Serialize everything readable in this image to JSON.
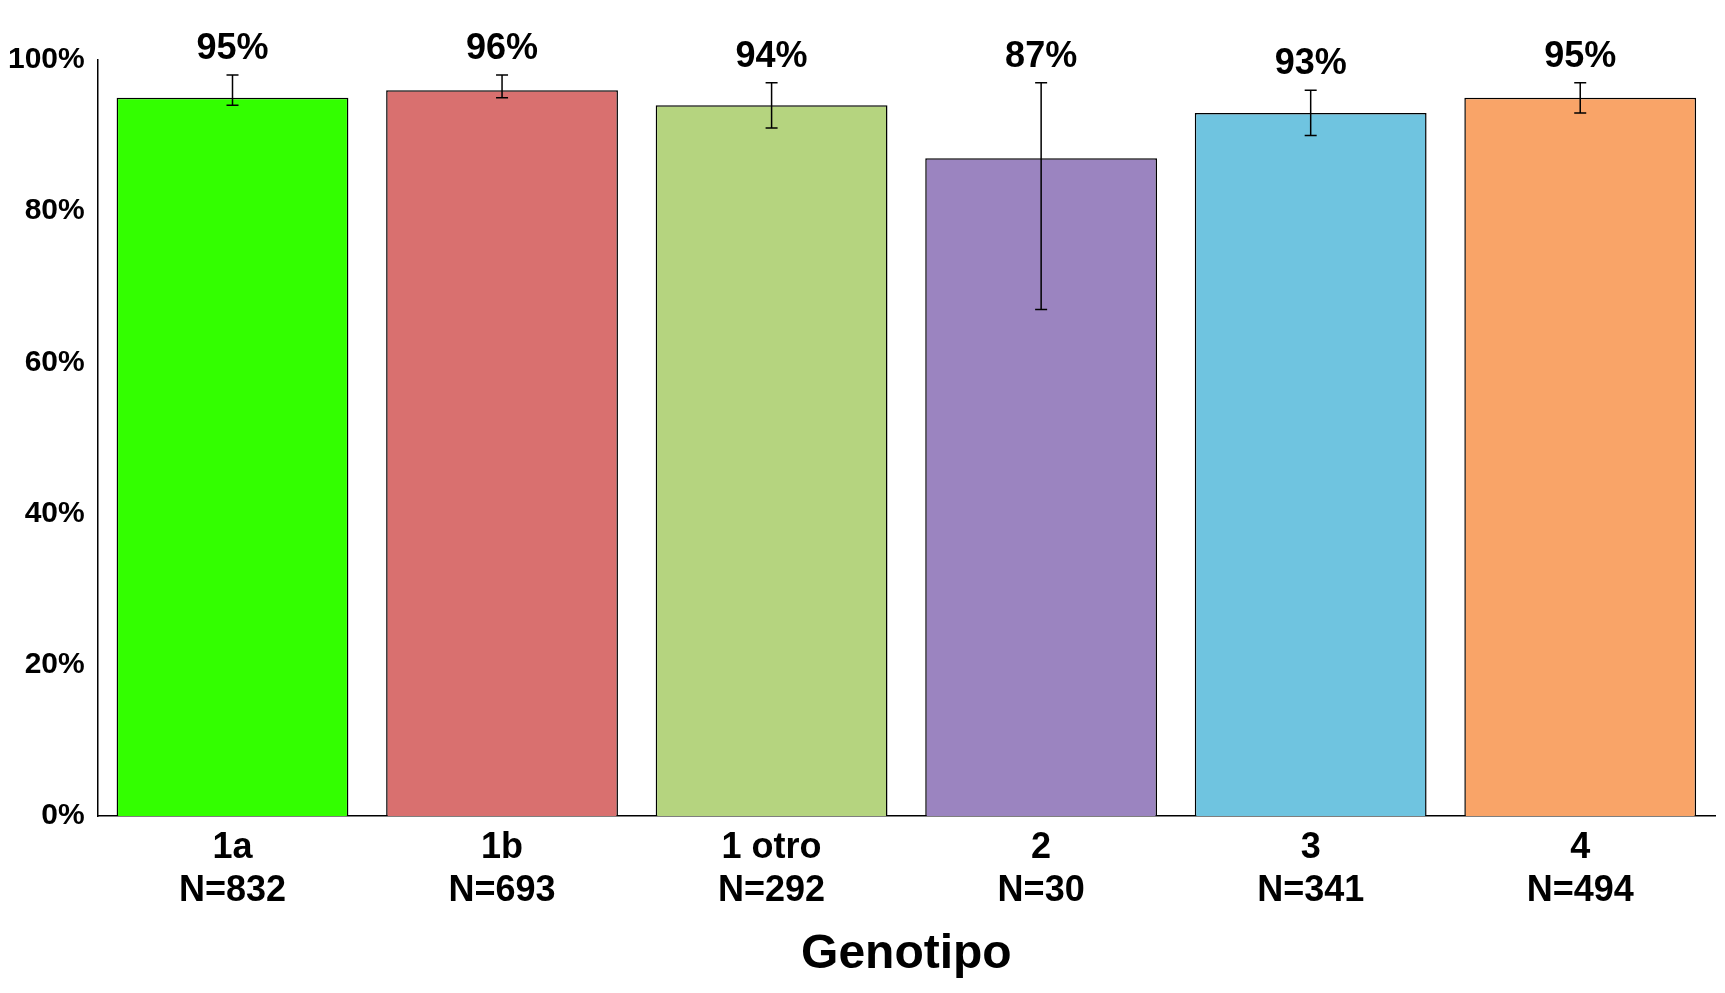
{
  "chart_data": {
    "type": "bar",
    "xlabel": "Genotipo",
    "categories": [
      "1a\nN=832",
      "1b\nN=693",
      "1 otro\nN=292",
      "2\nN=30",
      "3\nN=341",
      "4\nN=494"
    ],
    "values": [
      95,
      96,
      94,
      87,
      93,
      95
    ],
    "colors": [
      "#33ff00",
      "#d9706f",
      "#b5d47f",
      "#9b84c0",
      "#6fc4e0",
      "#f9a468"
    ],
    "errors": [
      [
        94,
        98
      ],
      [
        95,
        98
      ],
      [
        91,
        97
      ],
      [
        67,
        97
      ],
      [
        90,
        96
      ],
      [
        93,
        97
      ]
    ],
    "value_labels": [
      "95%",
      "96%",
      "94%",
      "87%",
      "93%",
      "95%"
    ],
    "ylim": [
      0,
      100
    ],
    "yticks": [
      {
        "value": 0,
        "label": "0%"
      },
      {
        "value": 20,
        "label": "20%"
      },
      {
        "value": 40,
        "label": "40%"
      },
      {
        "value": 60,
        "label": "60%"
      },
      {
        "value": 80,
        "label": "80%"
      },
      {
        "value": 100,
        "label": "100%"
      }
    ],
    "grid": false,
    "legend": false
  }
}
